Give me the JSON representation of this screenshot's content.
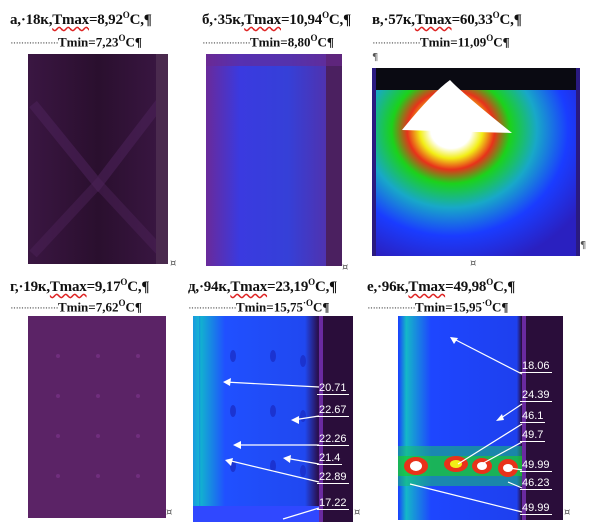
{
  "panels": [
    {
      "caption": "а,·18к,",
      "tmax_label": "Tmax",
      "tmax_value": "=8,92",
      "tmin_label": "Tmin",
      "tmin_value": "=7,23",
      "unit": "C"
    },
    {
      "caption": "б,·35к,",
      "tmax_label": "Tmax",
      "tmax_value": "=10,94",
      "tmin_label": "Tmin",
      "tmin_value": "=8,80",
      "unit": "C"
    },
    {
      "caption": "в,·57к,",
      "tmax_label": "Tmax",
      "tmax_value": "=60,33",
      "tmin_label": "Tmin",
      "tmin_value": "=11,09",
      "unit": "C"
    },
    {
      "caption": "г,·19к,",
      "tmax_label": "Tmax",
      "tmax_value": "=9,17",
      "tmin_label": "Tmin",
      "tmin_value": "=7,62",
      "unit": "C"
    },
    {
      "caption": "д,·94к,",
      "tmax_label": "Tmax",
      "tmax_value": "=23,19",
      "tmin_label": "Tmin",
      "tmin_value": "=15,75",
      "unit": "C"
    },
    {
      "caption": "е,·96к,",
      "tmax_label": "Tmax",
      "tmax_value": "=49,98",
      "tmin_label": "Tmin",
      "tmin_value": "=15,95",
      "unit": "C"
    }
  ],
  "degree_symbol": "O",
  "degree_symbol_small": "·O",
  "pilcrow": "¶",
  "cell_marker": "¤",
  "leader_dots": "··················",
  "labels_d": [
    "20.71",
    "22.67",
    "22.26",
    "21.4",
    "22.89",
    "17.22"
  ],
  "labels_e": [
    "18.06",
    "24.39",
    "46.1",
    "49.7",
    "49.99",
    "46.23",
    "49.99"
  ],
  "colors": {
    "purple_dark": "#2a0f2e",
    "purple": "#5a1f66",
    "blue": "#1a3cff",
    "green": "#1bd21b",
    "yellow": "#f2ee16",
    "red": "#e8321a",
    "white": "#ffffff"
  }
}
